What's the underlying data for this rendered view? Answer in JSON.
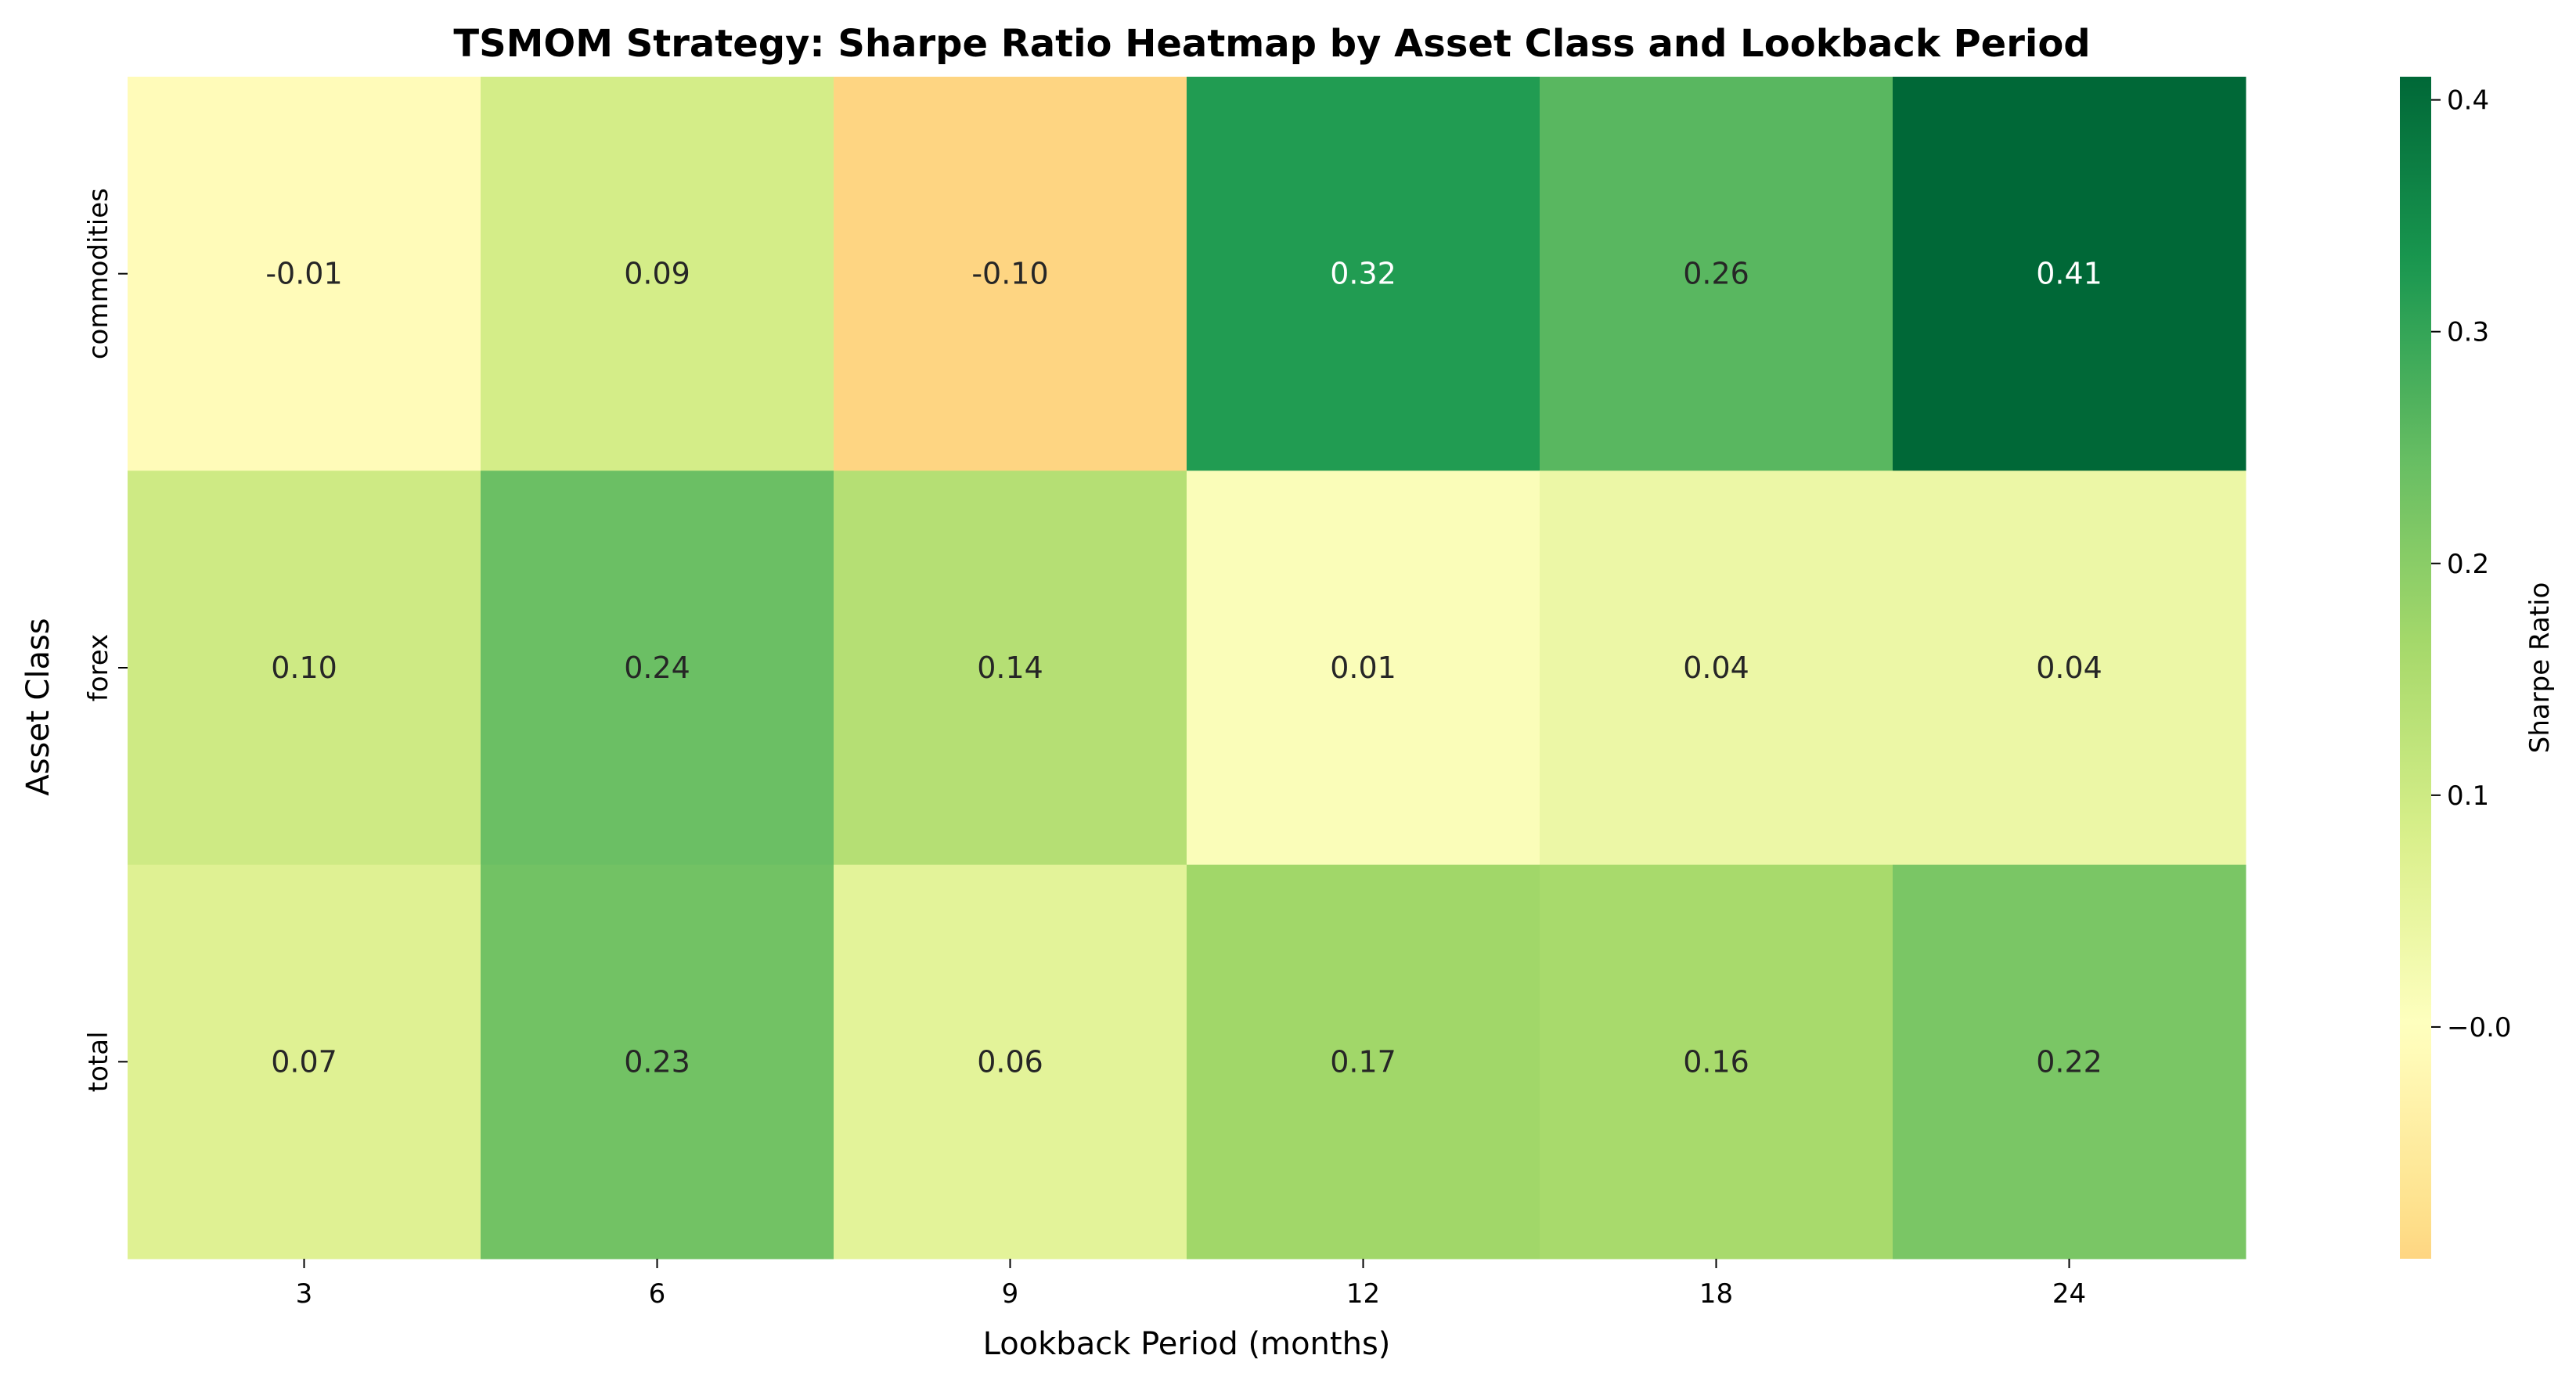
{
  "chart_data": {
    "type": "heatmap",
    "title": "TSMOM Strategy: Sharpe Ratio Heatmap by Asset Class and Lookback Period",
    "xlabel": "Lookback Period (months)",
    "ylabel": "Asset Class",
    "x_categories": [
      "3",
      "6",
      "9",
      "12",
      "18",
      "24"
    ],
    "y_categories": [
      "commodities",
      "forex",
      "total"
    ],
    "values": [
      [
        -0.01,
        0.09,
        -0.1,
        0.32,
        0.26,
        0.41
      ],
      [
        0.1,
        0.24,
        0.14,
        0.01,
        0.04,
        0.04
      ],
      [
        0.07,
        0.23,
        0.06,
        0.17,
        0.16,
        0.22
      ]
    ],
    "annotations": [
      [
        "-0.01",
        "0.09",
        "-0.10",
        "0.32",
        "0.26",
        "0.41"
      ],
      [
        "0.10",
        "0.24",
        "0.14",
        "0.01",
        "0.04",
        "0.04"
      ],
      [
        "0.07",
        "0.23",
        "0.06",
        "0.17",
        "0.16",
        "0.22"
      ]
    ],
    "colorbar": {
      "label": "Sharpe Ratio",
      "vmin": -0.1,
      "vmax": 0.41,
      "center": 0.0,
      "ticks": [
        -0.0,
        0.1,
        0.2,
        0.3,
        0.4
      ],
      "tick_labels": [
        "−0.0",
        "0.1",
        "0.2",
        "0.3",
        "0.4"
      ],
      "colormap": "RdYlGn"
    },
    "grid": false
  }
}
